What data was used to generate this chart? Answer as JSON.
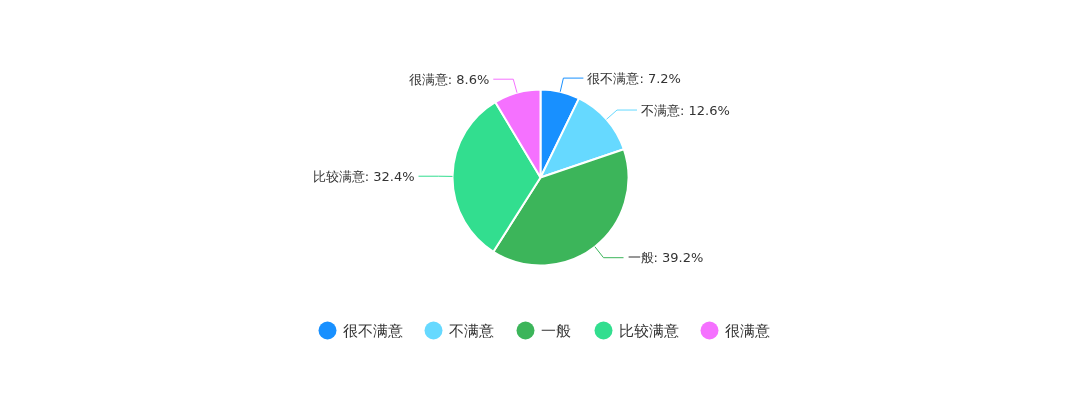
{
  "chart_data": {
    "type": "pie",
    "categories": [
      "很不满意",
      "不满意",
      "一般",
      "比较满意",
      "很满意"
    ],
    "values": [
      7.2,
      12.6,
      39.2,
      32.4,
      8.6
    ],
    "value_labels": [
      ": 7.2%",
      ": 12.6%",
      ": 39.2%",
      ": 32.4%",
      ": 8.6%"
    ],
    "colors": [
      "#1890ff",
      "#66d9ff",
      "#3cb55a",
      "#32de8f",
      "#f571ff"
    ],
    "legend": "bottom"
  }
}
